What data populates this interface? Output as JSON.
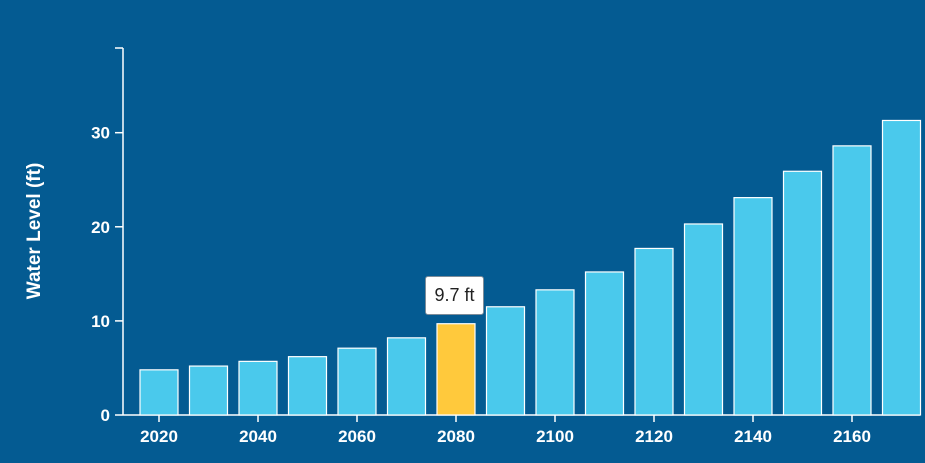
{
  "colors": {
    "background": "#045b92",
    "bar": "#4ac9ec",
    "bar_highlight": "#ffc93c",
    "axis": "#ffffff"
  },
  "tooltip": {
    "text": "9.7 ft",
    "index": 6
  },
  "chart_data": {
    "type": "bar",
    "title": "",
    "xlabel": "",
    "ylabel": "Water Level (ft)",
    "ylim": [
      0,
      39
    ],
    "yticks": [
      "0",
      "10",
      "20",
      "30"
    ],
    "x": [
      2020,
      2030,
      2040,
      2050,
      2060,
      2070,
      2080,
      2090,
      2100,
      2110,
      2120,
      2130,
      2140,
      2150,
      2160,
      2170
    ],
    "xticks": [
      "2020",
      "2040",
      "2060",
      "2080",
      "2100",
      "2120",
      "2140",
      "2160"
    ],
    "values": [
      4.8,
      5.2,
      5.7,
      6.2,
      7.1,
      8.2,
      9.7,
      11.5,
      13.3,
      15.2,
      17.7,
      20.3,
      23.1,
      25.9,
      28.6,
      31.3
    ],
    "grid": false,
    "legend": "none"
  }
}
